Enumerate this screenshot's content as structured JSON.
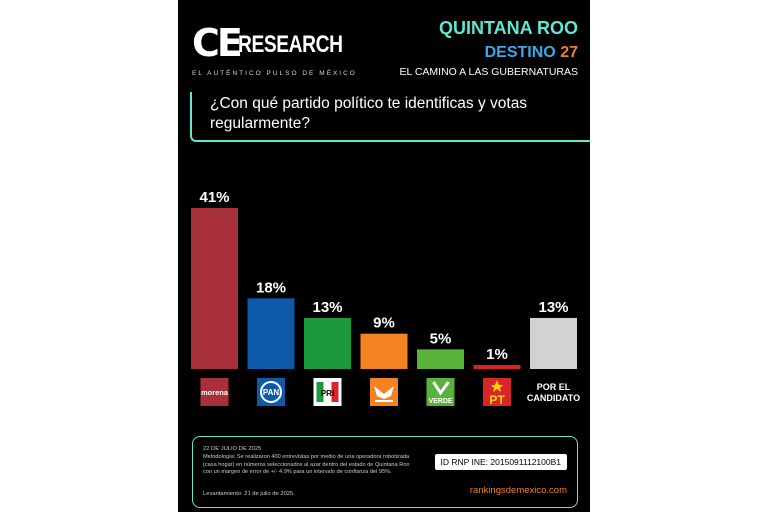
{
  "brand": {
    "ce": "CE",
    "research": "RESEARCH",
    "tagline": "EL AUTÉNTICO PULSO DE MÉXICO"
  },
  "header": {
    "state": "QUINTANA ROO",
    "destino_word": "DESTINO",
    "destino_num": "27",
    "subtitle": "EL CAMINO A LAS GUBERNATURAS"
  },
  "question": "¿Con qué partido político te identificas y votas regularmente?",
  "colors": {
    "teal": "#5ce8d3",
    "blue": "#3da8e8",
    "orange": "#f07f2a"
  },
  "chart_data": {
    "type": "bar",
    "categories": [
      "morena",
      "PAN",
      "PRI",
      "MC",
      "VERDE",
      "PT",
      "POR EL CANDIDATO"
    ],
    "values": [
      41,
      18,
      13,
      9,
      5,
      1,
      13
    ],
    "data_labels": [
      "41%",
      "18%",
      "13%",
      "9%",
      "5%",
      "1%",
      "13%"
    ],
    "colors": [
      "#a8303a",
      "#0e5aa8",
      "#1a9a3c",
      "#f58220",
      "#59b33a",
      "#d9252a",
      "#d2d2d2"
    ],
    "category_labels": {
      "morena": "morena",
      "pan": "PAN",
      "pri": "PRI",
      "verde": "VERDE",
      "pt": "PT",
      "candidato_line1": "POR EL",
      "candidato_line2": "CANDIDATO"
    },
    "ylim": [
      0,
      41
    ],
    "grid": false,
    "title": "",
    "xlabel": "",
    "ylabel": ""
  },
  "footer": {
    "date": "22 DE JULIO DE 2025",
    "methodology": "Metodología: Se realizaron 400 entrevistas por medio de una operadora robotizada (casa hogar) en números seleccionados al azar dentro del estado de Quintana Roo con un margen de error de +/- 4.9% para un intervalo de confianza del 95%.",
    "levantamiento": "Levantamiento: 21 de julio de 2025.",
    "id_rnp": "ID RNP INE: 2015091112100B1",
    "url": "rankingsdemexico.com"
  }
}
